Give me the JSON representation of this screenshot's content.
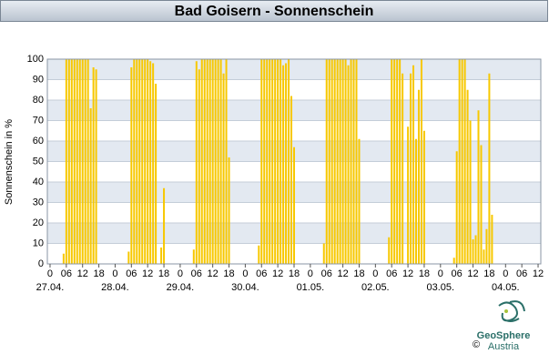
{
  "chart_data": {
    "type": "bar",
    "title": "Bad Goisern - Sonnenschein",
    "y_label": "Sonnenschein in %",
    "color": "#f7c800",
    "x": [
      5,
      6,
      7,
      8,
      9,
      10,
      11,
      12,
      13,
      14,
      15,
      16,
      17,
      29,
      30,
      31,
      32,
      33,
      34,
      35,
      36,
      37,
      38,
      39,
      41,
      42,
      53,
      54,
      55,
      56,
      57,
      58,
      59,
      60,
      61,
      62,
      63,
      64,
      65,
      66,
      77,
      78,
      79,
      80,
      81,
      82,
      83,
      84,
      85,
      86,
      87,
      88,
      89,
      90,
      101,
      102,
      103,
      104,
      105,
      106,
      107,
      108,
      109,
      110,
      111,
      112,
      113,
      114,
      125,
      126,
      127,
      128,
      129,
      130,
      132,
      133,
      134,
      135,
      136,
      137,
      138,
      149,
      150,
      151,
      152,
      153,
      154,
      155,
      156,
      157,
      158,
      159,
      160,
      161,
      162,
      163
    ],
    "values": [
      5,
      100,
      100,
      100,
      100,
      100,
      100,
      100,
      100,
      100,
      76,
      96,
      95,
      6,
      96,
      100,
      100,
      100,
      100,
      100,
      100,
      99,
      98,
      88,
      8,
      37,
      7,
      99,
      95,
      100,
      100,
      100,
      100,
      100,
      100,
      100,
      100,
      93,
      100,
      52,
      9,
      100,
      100,
      100,
      100,
      100,
      100,
      100,
      100,
      97,
      98,
      100,
      82,
      57,
      10,
      100,
      100,
      100,
      100,
      100,
      100,
      100,
      100,
      97,
      100,
      100,
      100,
      61,
      13,
      100,
      100,
      100,
      100,
      93,
      67,
      93,
      97,
      61,
      85,
      100,
      65,
      3,
      55,
      100,
      100,
      100,
      85,
      70,
      12,
      14,
      75,
      58,
      7,
      17,
      93,
      24
    ],
    "xlim": [
      -1,
      181
    ],
    "xticks": [
      {
        "value": 0,
        "label": "0"
      },
      {
        "value": 6,
        "label": "06"
      },
      {
        "value": 12,
        "label": "12"
      },
      {
        "value": 18,
        "label": "18"
      },
      {
        "value": 24,
        "label": "0"
      },
      {
        "value": 30,
        "label": "06"
      },
      {
        "value": 36,
        "label": "12"
      },
      {
        "value": 42,
        "label": "18"
      },
      {
        "value": 48,
        "label": "0"
      },
      {
        "value": 54,
        "label": "06"
      },
      {
        "value": 60,
        "label": "12"
      },
      {
        "value": 66,
        "label": "18"
      },
      {
        "value": 72,
        "label": "0"
      },
      {
        "value": 78,
        "label": "06"
      },
      {
        "value": 84,
        "label": "12"
      },
      {
        "value": 90,
        "label": "18"
      },
      {
        "value": 96,
        "label": "0"
      },
      {
        "value": 102,
        "label": "06"
      },
      {
        "value": 108,
        "label": "12"
      },
      {
        "value": 114,
        "label": "18"
      },
      {
        "value": 120,
        "label": "0"
      },
      {
        "value": 126,
        "label": "06"
      },
      {
        "value": 132,
        "label": "12"
      },
      {
        "value": 138,
        "label": "18"
      },
      {
        "value": 144,
        "label": "0"
      },
      {
        "value": 150,
        "label": "06"
      },
      {
        "value": 156,
        "label": "12"
      },
      {
        "value": 162,
        "label": "18"
      },
      {
        "value": 168,
        "label": "0"
      },
      {
        "value": 174,
        "label": "06"
      },
      {
        "value": 180,
        "label": "12"
      }
    ],
    "date_ticks": [
      {
        "value": 0,
        "label": "27.04."
      },
      {
        "value": 24,
        "label": "28.04."
      },
      {
        "value": 48,
        "label": "29.04."
      },
      {
        "value": 72,
        "label": "30.04."
      },
      {
        "value": 96,
        "label": "01.05."
      },
      {
        "value": 120,
        "label": "02.05."
      },
      {
        "value": 144,
        "label": "03.05."
      },
      {
        "value": 168,
        "label": "04.05."
      }
    ],
    "ylim": [
      0,
      100
    ],
    "yticks": [
      0,
      10,
      20,
      30,
      40,
      50,
      60,
      70,
      80,
      90,
      100
    ],
    "grid": true
  },
  "logo": {
    "copyright": "©",
    "name": "GeoSphere",
    "sub": "Austria"
  }
}
